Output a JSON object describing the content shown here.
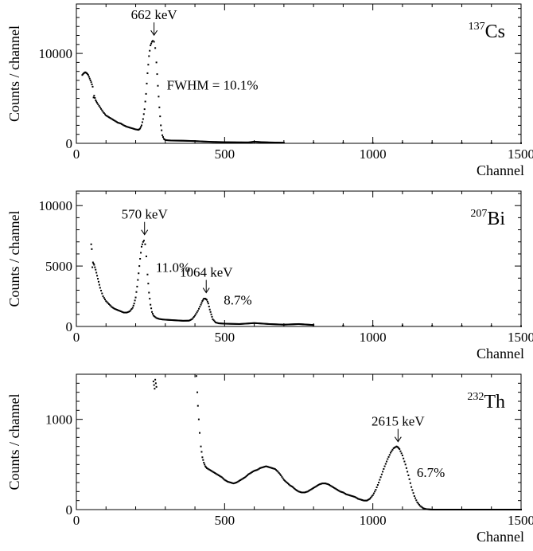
{
  "chart_data": [
    {
      "type": "scatter",
      "isotope": {
        "mass": "137",
        "symbol": "Cs"
      },
      "xlabel": "Channel",
      "ylabel": "Counts / channel",
      "xlim": [
        0,
        1500
      ],
      "ylim": [
        0,
        15500
      ],
      "xticks": [
        0,
        500,
        1000,
        1500
      ],
      "yticks": [
        0,
        10000
      ],
      "annotations": [
        {
          "text": "662 keV",
          "arrow": true,
          "x": 262,
          "y": 11500
        },
        {
          "text": "FWHM = 10.1%",
          "arrow": false,
          "x": 305,
          "y": 6000
        }
      ],
      "series": [
        {
          "x": [
            20,
            25,
            30,
            35,
            40,
            45,
            50,
            55,
            58,
            60,
            65,
            70,
            80,
            90,
            100,
            110,
            120,
            130,
            140,
            150,
            160,
            170,
            180,
            190,
            200,
            210,
            215,
            220,
            225,
            230,
            235,
            240,
            245,
            250,
            255,
            258,
            262,
            266,
            270,
            275,
            280,
            285,
            290,
            295,
            300,
            310,
            320,
            340,
            360,
            380,
            400,
            430,
            460,
            500,
            540,
            580,
            600,
            620,
            650,
            700,
            800,
            900,
            1000,
            1100,
            1200,
            1300,
            1400,
            1500
          ],
          "y": [
            7600,
            7800,
            7900,
            7800,
            7600,
            7200,
            6800,
            6300,
            5100,
            5300,
            4800,
            4500,
            4000,
            3500,
            3100,
            2900,
            2700,
            2500,
            2300,
            2200,
            2000,
            1850,
            1750,
            1650,
            1550,
            1500,
            1650,
            2000,
            2700,
            3800,
            5500,
            7800,
            9700,
            10900,
            11300,
            11400,
            11300,
            10600,
            9000,
            6400,
            4000,
            2000,
            900,
            500,
            370,
            330,
            310,
            300,
            290,
            270,
            250,
            200,
            160,
            130,
            110,
            100,
            180,
            140,
            100,
            70,
            50,
            40,
            30,
            50,
            30,
            25,
            20,
            15
          ]
        }
      ]
    },
    {
      "type": "scatter",
      "isotope": {
        "mass": "207",
        "symbol": "Bi"
      },
      "xlabel": "Channel",
      "ylabel": "Counts / channel",
      "xlim": [
        0,
        1500
      ],
      "ylim": [
        0,
        11200
      ],
      "xticks": [
        0,
        500,
        1000,
        1500
      ],
      "yticks": [
        0,
        5000,
        10000
      ],
      "annotations": [
        {
          "text": "570 keV",
          "arrow": true,
          "x": 230,
          "y": 7200
        },
        {
          "text": "11.0%",
          "arrow": false,
          "x": 268,
          "y": 4500
        },
        {
          "text": "1064 keV",
          "arrow": true,
          "x": 438,
          "y": 2400
        },
        {
          "text": "8.7%",
          "arrow": false,
          "x": 497,
          "y": 1800
        }
      ],
      "series": [
        {
          "x": [
            50,
            52,
            54,
            56,
            58,
            60,
            65,
            70,
            75,
            80,
            90,
            100,
            110,
            120,
            130,
            140,
            150,
            160,
            170,
            180,
            190,
            195,
            200,
            205,
            210,
            215,
            220,
            225,
            228,
            232,
            236,
            240,
            245,
            250,
            255,
            260,
            270,
            280,
            290,
            300,
            320,
            340,
            360,
            380,
            390,
            400,
            410,
            420,
            425,
            430,
            435,
            440,
            445,
            450,
            455,
            460,
            470,
            480,
            500,
            550,
            600,
            620,
            650,
            700,
            750,
            800,
            900,
            1000,
            1100,
            1200,
            1300,
            1400,
            1500
          ],
          "y": [
            6800,
            6400,
            4900,
            5300,
            5200,
            5100,
            4700,
            4200,
            3700,
            3200,
            2500,
            2100,
            1850,
            1600,
            1450,
            1350,
            1250,
            1150,
            1150,
            1250,
            1550,
            1900,
            2400,
            3300,
            4400,
            5600,
            6600,
            7000,
            7100,
            6800,
            5800,
            4300,
            2800,
            1800,
            1200,
            900,
            700,
            620,
            580,
            560,
            530,
            500,
            470,
            480,
            600,
            900,
            1300,
            1800,
            2100,
            2300,
            2300,
            2200,
            1900,
            1400,
            1000,
            600,
            330,
            260,
            230,
            200,
            280,
            250,
            200,
            150,
            200,
            120,
            80,
            60,
            90,
            50,
            40,
            30,
            20
          ]
        }
      ]
    },
    {
      "type": "scatter",
      "isotope": {
        "mass": "232",
        "symbol": "Th"
      },
      "xlabel": "Channel",
      "ylabel": "Counts / channel",
      "xlim": [
        0,
        1500
      ],
      "ylim": [
        0,
        1500
      ],
      "xticks": [
        0,
        500,
        1000,
        1500
      ],
      "yticks": [
        0,
        1000
      ],
      "annotations": [
        {
          "text": "2615 keV",
          "arrow": true,
          "x": 1085,
          "y": 700
        },
        {
          "text": "6.7%",
          "arrow": false,
          "x": 1148,
          "y": 360
        }
      ],
      "series": [
        {
          "x": [
            260,
            262,
            264,
            266,
            268,
            270,
            405,
            408,
            410,
            413,
            416,
            420,
            425,
            430,
            435,
            440,
            450,
            460,
            470,
            480,
            490,
            500,
            510,
            520,
            530,
            540,
            550,
            560,
            570,
            580,
            590,
            600,
            610,
            620,
            630,
            640,
            650,
            660,
            670,
            680,
            690,
            700,
            710,
            720,
            730,
            740,
            750,
            760,
            770,
            780,
            790,
            800,
            810,
            820,
            830,
            840,
            850,
            860,
            870,
            880,
            890,
            900,
            910,
            920,
            930,
            940,
            950,
            960,
            970,
            980,
            990,
            1000,
            1010,
            1020,
            1030,
            1040,
            1050,
            1060,
            1070,
            1080,
            1085,
            1090,
            1100,
            1110,
            1120,
            1130,
            1140,
            1150,
            1160,
            1170,
            1180,
            1200,
            1250,
            1300,
            1350,
            1400,
            1450,
            1500
          ],
          "y": [
            1420,
            1380,
            1340,
            1440,
            1400,
            1360,
            1480,
            1300,
            1150,
            1000,
            850,
            700,
            580,
            520,
            480,
            460,
            440,
            420,
            400,
            380,
            360,
            330,
            310,
            300,
            290,
            300,
            320,
            340,
            360,
            390,
            410,
            430,
            440,
            460,
            470,
            480,
            470,
            460,
            450,
            420,
            380,
            330,
            300,
            270,
            250,
            220,
            200,
            190,
            190,
            200,
            220,
            240,
            260,
            280,
            290,
            290,
            280,
            260,
            240,
            220,
            200,
            190,
            170,
            160,
            150,
            140,
            120,
            110,
            100,
            100,
            120,
            160,
            220,
            300,
            390,
            480,
            560,
            630,
            680,
            700,
            690,
            670,
            600,
            500,
            380,
            250,
            150,
            80,
            40,
            15,
            5,
            0,
            0,
            0,
            0,
            0,
            0,
            0
          ]
        }
      ]
    }
  ]
}
